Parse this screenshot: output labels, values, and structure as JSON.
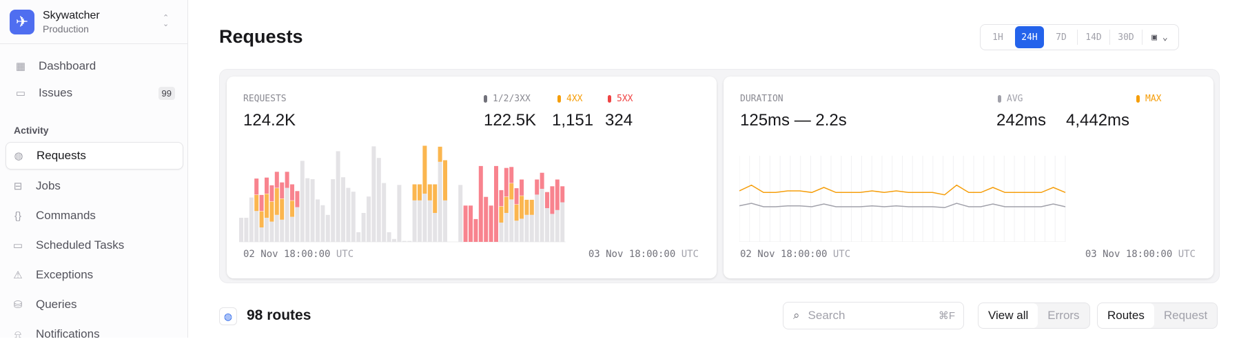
{
  "sidebar": {
    "app_name": "Skywatcher",
    "environment": "Production",
    "top_items": [
      {
        "label": "Dashboard",
        "icon": "dashboard-icon"
      },
      {
        "label": "Issues",
        "icon": "inbox-icon",
        "badge": "99"
      }
    ],
    "section": "Activity",
    "items": [
      {
        "label": "Requests",
        "icon": "globe-icon",
        "active": true
      },
      {
        "label": "Jobs",
        "icon": "briefcase-icon"
      },
      {
        "label": "Commands",
        "icon": "braces-icon"
      },
      {
        "label": "Scheduled Tasks",
        "icon": "calendar-icon"
      },
      {
        "label": "Exceptions",
        "icon": "warning-icon"
      },
      {
        "label": "Queries",
        "icon": "database-icon"
      },
      {
        "label": "Notifications",
        "icon": "bell-icon"
      }
    ]
  },
  "header": {
    "title": "Requests",
    "ranges": [
      "1H",
      "24H",
      "7D",
      "14D",
      "30D"
    ],
    "selected_range": "24H"
  },
  "requests_card": {
    "label": "REQUESTS",
    "total": "124.2K",
    "legend": [
      {
        "name": "1/2/3XX",
        "value": "122.5K",
        "color": "#71717a"
      },
      {
        "name": "4XX",
        "value": "1,151",
        "color": "#f59e0b"
      },
      {
        "name": "5XX",
        "value": "324",
        "color": "#ef4444"
      }
    ],
    "start": "02 Nov 18:00:00",
    "end": "03 Nov 18:00:00",
    "tz": "UTC"
  },
  "duration_card": {
    "label": "DURATION",
    "range": "125ms — 2.2s",
    "legend": [
      {
        "name": "AVG",
        "value": "242ms",
        "color": "#a1a1aa"
      },
      {
        "name": "MAX",
        "value": "4,442ms",
        "color": "#f59e0b"
      }
    ],
    "start": "02 Nov 18:00:00",
    "end": "03 Nov 18:00:00",
    "tz": "UTC"
  },
  "chart_data": [
    {
      "type": "bar",
      "stacked": true,
      "colors": {
        "ok": "#e4e3e6",
        "4xx": "#fbb64f",
        "5xx": "#f8838e"
      },
      "series": [
        {
          "name": "1/2/3XX",
          "values": [
            25,
            25,
            46,
            32,
            15,
            25,
            21,
            28,
            23,
            56,
            26,
            36,
            84,
            66,
            65,
            44,
            38,
            28,
            65,
            94,
            67,
            56,
            52,
            10,
            30,
            47,
            99,
            87,
            61,
            10,
            3,
            59,
            1,
            1,
            43,
            43,
            50,
            43,
            30,
            83,
            43,
            0,
            0,
            59,
            0,
            0,
            0,
            0,
            0,
            0,
            0,
            20,
            30,
            44,
            22,
            24,
            28,
            28,
            49,
            55,
            35,
            29,
            33,
            41
          ]
        },
        {
          "name": "4XX",
          "values": [
            0,
            0,
            0,
            17,
            17,
            25,
            21,
            28,
            22,
            0,
            17,
            0,
            0,
            0,
            0,
            0,
            0,
            0,
            0,
            0,
            0,
            0,
            0,
            0,
            0,
            0,
            0,
            0,
            0,
            0,
            0,
            0,
            0,
            0,
            17,
            17,
            50,
            17,
            30,
            16,
            42,
            0,
            0,
            0,
            0,
            0,
            0,
            0,
            0,
            0,
            0,
            17,
            17,
            17,
            17,
            24,
            16,
            16,
            0,
            0,
            0,
            0,
            0,
            0
          ]
        },
        {
          "name": "5XX",
          "values": [
            0,
            0,
            0,
            17,
            17,
            17,
            17,
            17,
            17,
            17,
            17,
            17,
            0,
            0,
            0,
            0,
            0,
            0,
            0,
            0,
            0,
            0,
            0,
            0,
            0,
            0,
            0,
            0,
            0,
            0,
            0,
            0,
            0,
            0,
            0,
            0,
            0,
            0,
            0,
            0,
            0,
            0,
            0,
            0,
            38,
            38,
            24,
            79,
            47,
            38,
            79,
            17,
            30,
            17,
            17,
            17,
            0,
            0,
            16,
            17,
            17,
            29,
            32,
            17
          ]
        }
      ],
      "ylim": [
        0,
        100
      ]
    },
    {
      "type": "line",
      "series": [
        {
          "name": "MAX",
          "color": "#f59e0b",
          "values": [
            222,
            247,
            215,
            215,
            222,
            222,
            215,
            237,
            215,
            215,
            215,
            222,
            215,
            222,
            215,
            215,
            215,
            205,
            247,
            215,
            215,
            237,
            215,
            215,
            215,
            215,
            237,
            215
          ]
        },
        {
          "name": "AVG",
          "color": "#a1a1aa",
          "values": [
            157,
            168,
            153,
            153,
            157,
            157,
            153,
            165,
            153,
            153,
            153,
            157,
            153,
            157,
            153,
            153,
            153,
            149,
            168,
            153,
            153,
            165,
            153,
            153,
            153,
            153,
            165,
            153
          ]
        }
      ],
      "ylim": [
        0,
        375
      ],
      "grid": "vertical"
    }
  ],
  "routes": {
    "count": "98 routes",
    "search_placeholder": "Search",
    "shortcut": "⌘F",
    "filter": [
      "View all",
      "Errors"
    ],
    "view": [
      "Routes",
      "Request"
    ]
  }
}
